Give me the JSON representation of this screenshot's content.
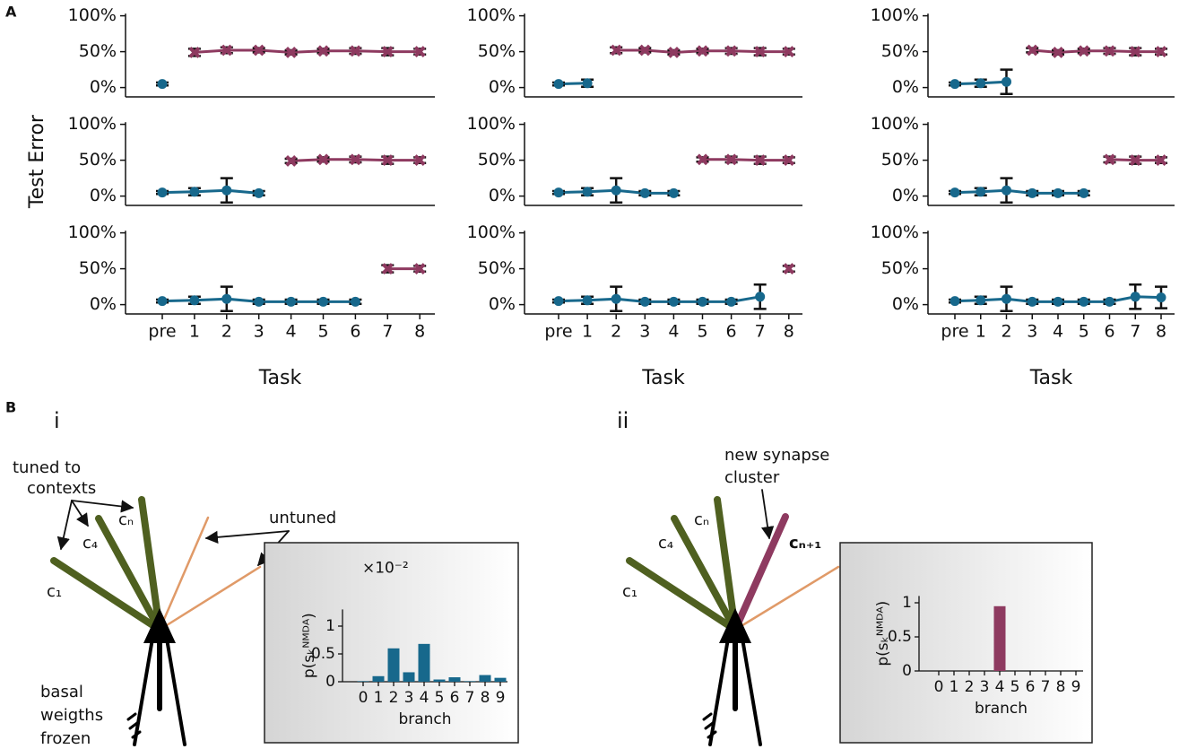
{
  "panel_labels": [
    "A",
    "B"
  ],
  "ylabel": "Test Error",
  "chart_data": [
    {
      "type": "line",
      "ylim": [
        -13,
        103
      ],
      "yticks": [
        {
          "value": 0,
          "label": "0%"
        },
        {
          "value": 50,
          "label": "50%"
        },
        {
          "value": 100,
          "label": "100%"
        }
      ],
      "series": [
        {
          "color": "#17688c",
          "marker": "circle",
          "values": [
            5,
            null,
            null,
            null,
            null,
            null,
            null,
            null,
            null
          ],
          "errors": [
            2,
            null,
            null,
            null,
            null,
            null,
            null,
            null,
            null
          ]
        },
        {
          "color": "#8e3a60",
          "marker": "x",
          "values": [
            null,
            49,
            52,
            52,
            49,
            51,
            51,
            50,
            50
          ],
          "errors": [
            null,
            5,
            4,
            3,
            3,
            3,
            4,
            5,
            4
          ]
        }
      ]
    },
    {
      "type": "line",
      "ylim": [
        -13,
        103
      ],
      "yticks": [
        {
          "value": 0,
          "label": "0%"
        },
        {
          "value": 50,
          "label": "50%"
        },
        {
          "value": 100,
          "label": "100%"
        }
      ],
      "series": [
        {
          "color": "#17688c",
          "marker": "circle",
          "values": [
            5,
            6,
            null,
            null,
            null,
            null,
            null,
            null,
            null
          ],
          "errors": [
            2,
            5,
            null,
            null,
            null,
            null,
            null,
            null,
            null
          ]
        },
        {
          "color": "#8e3a60",
          "marker": "x",
          "values": [
            null,
            null,
            52,
            52,
            49,
            51,
            51,
            50,
            50
          ],
          "errors": [
            null,
            null,
            4,
            3,
            3,
            3,
            4,
            5,
            4
          ]
        }
      ]
    },
    {
      "type": "line",
      "ylim": [
        -13,
        103
      ],
      "yticks": [
        {
          "value": 0,
          "label": "0%"
        },
        {
          "value": 50,
          "label": "50%"
        },
        {
          "value": 100,
          "label": "100%"
        }
      ],
      "series": [
        {
          "color": "#17688c",
          "marker": "circle",
          "values": [
            5,
            6,
            8,
            null,
            null,
            null,
            null,
            null,
            null
          ],
          "errors": [
            2,
            5,
            17,
            null,
            null,
            null,
            null,
            null,
            null
          ]
        },
        {
          "color": "#8e3a60",
          "marker": "x",
          "values": [
            null,
            null,
            null,
            52,
            49,
            51,
            51,
            50,
            50
          ],
          "errors": [
            null,
            null,
            null,
            3,
            3,
            3,
            4,
            5,
            4
          ]
        }
      ]
    },
    {
      "type": "line",
      "ylim": [
        -13,
        103
      ],
      "yticks": [
        {
          "value": 0,
          "label": "0%"
        },
        {
          "value": 50,
          "label": "50%"
        },
        {
          "value": 100,
          "label": "100%"
        }
      ],
      "series": [
        {
          "color": "#17688c",
          "marker": "circle",
          "values": [
            5,
            6,
            8,
            4,
            null,
            null,
            null,
            null,
            null
          ],
          "errors": [
            2,
            5,
            17,
            3,
            null,
            null,
            null,
            null,
            null
          ]
        },
        {
          "color": "#8e3a60",
          "marker": "x",
          "values": [
            null,
            null,
            null,
            null,
            49,
            51,
            51,
            50,
            50
          ],
          "errors": [
            null,
            null,
            null,
            null,
            3,
            3,
            4,
            5,
            4
          ]
        }
      ]
    },
    {
      "type": "line",
      "ylim": [
        -13,
        103
      ],
      "yticks": [
        {
          "value": 0,
          "label": "0%"
        },
        {
          "value": 50,
          "label": "50%"
        },
        {
          "value": 100,
          "label": "100%"
        }
      ],
      "series": [
        {
          "color": "#17688c",
          "marker": "circle",
          "values": [
            5,
            6,
            8,
            4,
            4,
            null,
            null,
            null,
            null
          ],
          "errors": [
            2,
            5,
            17,
            3,
            3,
            null,
            null,
            null,
            null
          ]
        },
        {
          "color": "#8e3a60",
          "marker": "x",
          "values": [
            null,
            null,
            null,
            null,
            null,
            51,
            51,
            50,
            50
          ],
          "errors": [
            null,
            null,
            null,
            null,
            null,
            3,
            4,
            5,
            4
          ]
        }
      ]
    },
    {
      "type": "line",
      "ylim": [
        -13,
        103
      ],
      "yticks": [
        {
          "value": 0,
          "label": "0%"
        },
        {
          "value": 50,
          "label": "50%"
        },
        {
          "value": 100,
          "label": "100%"
        }
      ],
      "series": [
        {
          "color": "#17688c",
          "marker": "circle",
          "values": [
            5,
            6,
            8,
            4,
            4,
            4,
            null,
            null,
            null
          ],
          "errors": [
            2,
            5,
            17,
            3,
            3,
            3,
            null,
            null,
            null
          ]
        },
        {
          "color": "#8e3a60",
          "marker": "x",
          "values": [
            null,
            null,
            null,
            null,
            null,
            null,
            51,
            50,
            50
          ],
          "errors": [
            null,
            null,
            null,
            null,
            null,
            null,
            4,
            5,
            4
          ]
        }
      ]
    },
    {
      "type": "line",
      "xlabel": "Task",
      "categories": [
        "pre",
        "1",
        "2",
        "3",
        "4",
        "5",
        "6",
        "7",
        "8"
      ],
      "ylim": [
        -13,
        103
      ],
      "yticks": [
        {
          "value": 0,
          "label": "0%"
        },
        {
          "value": 50,
          "label": "50%"
        },
        {
          "value": 100,
          "label": "100%"
        }
      ],
      "series": [
        {
          "color": "#17688c",
          "marker": "circle",
          "values": [
            5,
            6,
            8,
            4,
            4,
            4,
            4,
            null,
            null
          ],
          "errors": [
            2,
            5,
            17,
            3,
            3,
            3,
            3,
            null,
            null
          ]
        },
        {
          "color": "#8e3a60",
          "marker": "x",
          "values": [
            null,
            null,
            null,
            null,
            null,
            null,
            null,
            50,
            50
          ],
          "errors": [
            null,
            null,
            null,
            null,
            null,
            null,
            null,
            5,
            4
          ]
        }
      ]
    },
    {
      "type": "line",
      "xlabel": "Task",
      "categories": [
        "pre",
        "1",
        "2",
        "3",
        "4",
        "5",
        "6",
        "7",
        "8"
      ],
      "ylim": [
        -13,
        103
      ],
      "yticks": [
        {
          "value": 0,
          "label": "0%"
        },
        {
          "value": 50,
          "label": "50%"
        },
        {
          "value": 100,
          "label": "100%"
        }
      ],
      "series": [
        {
          "color": "#17688c",
          "marker": "circle",
          "values": [
            5,
            6,
            8,
            4,
            4,
            4,
            4,
            11,
            null
          ],
          "errors": [
            2,
            5,
            17,
            3,
            3,
            3,
            3,
            17,
            null
          ]
        },
        {
          "color": "#8e3a60",
          "marker": "x",
          "values": [
            null,
            null,
            null,
            null,
            null,
            null,
            null,
            null,
            50
          ],
          "errors": [
            null,
            null,
            null,
            null,
            null,
            null,
            null,
            null,
            4
          ]
        }
      ]
    },
    {
      "type": "line",
      "xlabel": "Task",
      "categories": [
        "pre",
        "1",
        "2",
        "3",
        "4",
        "5",
        "6",
        "7",
        "8"
      ],
      "ylim": [
        -13,
        103
      ],
      "yticks": [
        {
          "value": 0,
          "label": "0%"
        },
        {
          "value": 50,
          "label": "50%"
        },
        {
          "value": 100,
          "label": "100%"
        }
      ],
      "series": [
        {
          "color": "#17688c",
          "marker": "circle",
          "values": [
            5,
            6,
            8,
            4,
            4,
            4,
            4,
            11,
            10
          ],
          "errors": [
            2,
            5,
            17,
            3,
            3,
            3,
            3,
            17,
            15
          ]
        }
      ]
    },
    {
      "type": "bar",
      "ylabel": "p(sₖᴺᴹᴰᴬ)",
      "xlabel": "branch",
      "offset_label": "×10⁻²",
      "color": "#17688c",
      "categories": [
        "0",
        "1",
        "2",
        "3",
        "4",
        "5",
        "6",
        "7",
        "8",
        "9"
      ],
      "values": [
        0.01,
        0.1,
        0.6,
        0.17,
        0.68,
        0.04,
        0.08,
        0.01,
        0.12,
        0.07
      ],
      "ylim": [
        0,
        1.3
      ],
      "yticks": [
        0,
        0.5,
        1
      ]
    },
    {
      "type": "bar",
      "ylabel": "p(sₖᴺᴹᴰᴬ)",
      "xlabel": "branch",
      "color": "#8e3a60",
      "categories": [
        "0",
        "1",
        "2",
        "3",
        "4",
        "5",
        "6",
        "7",
        "8",
        "9"
      ],
      "values": [
        0,
        0,
        0,
        0,
        0.95,
        0,
        0,
        0,
        0,
        0
      ],
      "ylim": [
        0,
        1.1
      ],
      "yticks": [
        0,
        0.5,
        1
      ]
    }
  ],
  "diagrams": [
    {
      "label": "i",
      "tuned_label": [
        "tuned to",
        "contexts"
      ],
      "branch_labels": [
        "c₁",
        "c₄",
        "cₙ"
      ],
      "untuned_label": "untuned",
      "frozen_label": [
        "basal",
        "weigths",
        "frozen"
      ]
    },
    {
      "label": "ii",
      "new_label": [
        "new synapse",
        "cluster"
      ],
      "branch_labels": [
        "c₁",
        "c₄",
        "cₙ",
        "cₙ₊₁"
      ]
    }
  ]
}
